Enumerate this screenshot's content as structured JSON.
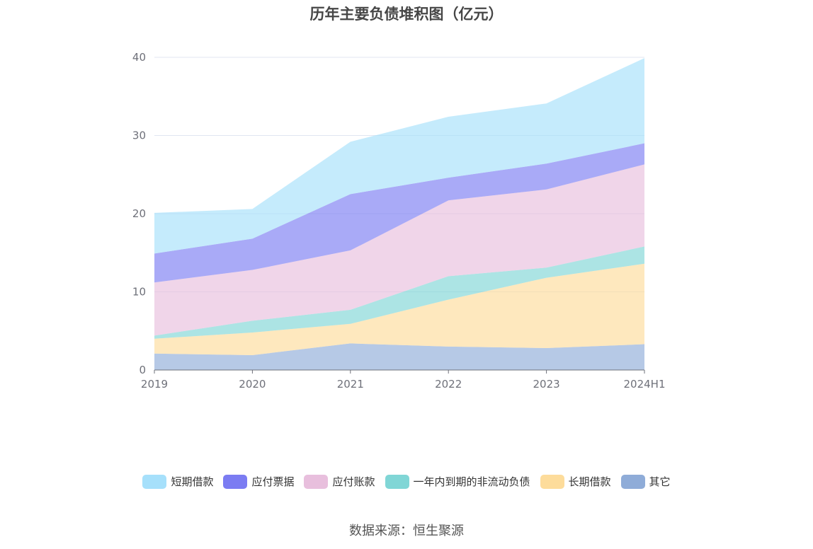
{
  "title": "历年主要负债堆积图（亿元）",
  "source": "数据来源：恒生聚源",
  "chart_data": {
    "type": "area",
    "stacked": true,
    "title": "历年主要负债堆积图（亿元）",
    "categories": [
      "2019",
      "2020",
      "2021",
      "2022",
      "2023",
      "2024H1"
    ],
    "ylim": [
      0,
      40
    ],
    "yticks": [
      "0",
      "10",
      "20",
      "30",
      "40"
    ],
    "grid": true,
    "legend_position": "bottom",
    "series": [
      {
        "name": "其它",
        "color": "#8facd8",
        "values": [
          2.1,
          1.9,
          3.4,
          3.0,
          2.8,
          3.3
        ]
      },
      {
        "name": "长期借款",
        "color": "#fddc9b",
        "values": [
          1.9,
          2.9,
          2.5,
          6.0,
          9.0,
          10.3
        ]
      },
      {
        "name": "一年内到期的非流动负债",
        "color": "#80d6d6",
        "values": [
          0.4,
          1.5,
          1.8,
          3.0,
          1.3,
          2.2
        ]
      },
      {
        "name": "应付账款",
        "color": "#e8bfdd",
        "values": [
          6.8,
          6.5,
          7.6,
          9.7,
          10.0,
          10.5
        ]
      },
      {
        "name": "应付票据",
        "color": "#7b7cf2",
        "values": [
          3.7,
          4.0,
          7.2,
          2.9,
          3.3,
          2.7
        ]
      },
      {
        "name": "短期借款",
        "color": "#a6e0fb",
        "values": [
          5.2,
          3.8,
          6.7,
          7.8,
          7.7,
          10.9
        ]
      }
    ],
    "legend_order": [
      "短期借款",
      "应付票据",
      "应付账款",
      "一年内到期的非流动负债",
      "长期借款",
      "其它"
    ]
  }
}
